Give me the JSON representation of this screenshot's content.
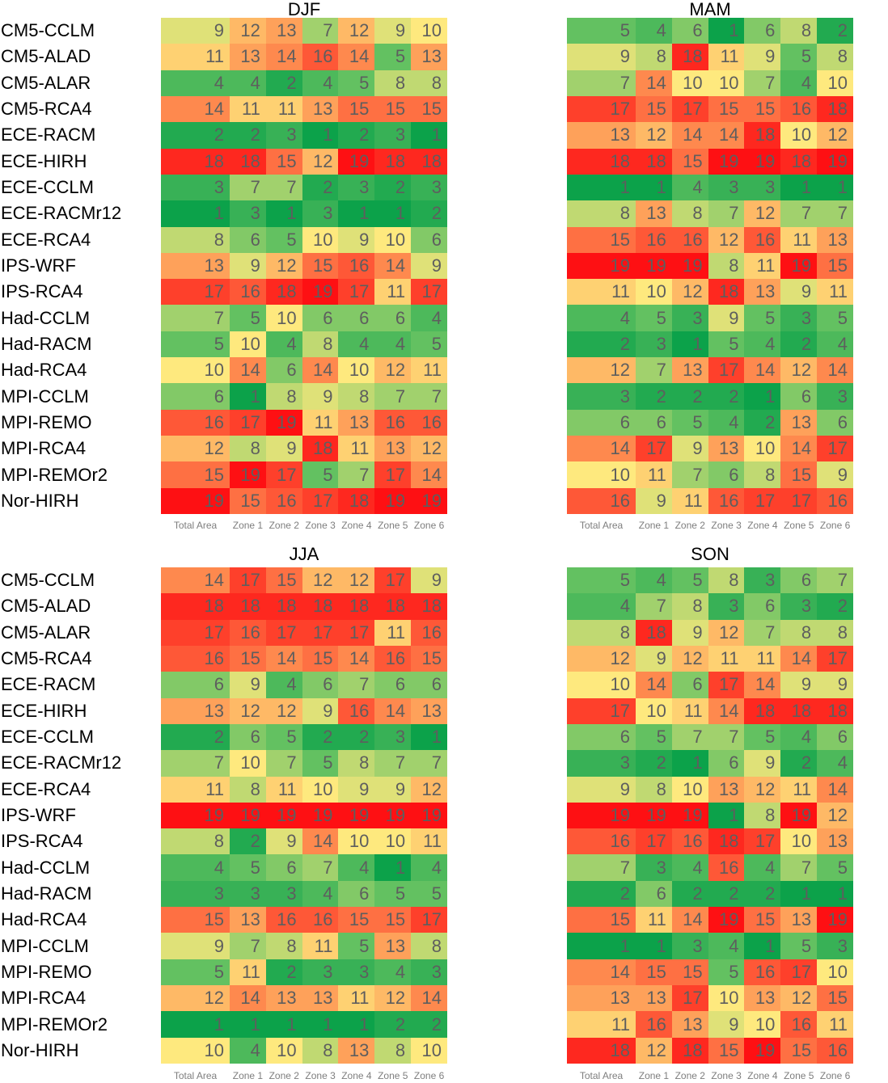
{
  "chart_data": {
    "type": "heatmap",
    "layout": {
      "panels_grid": "2x2",
      "grid_lines": false,
      "cell_value_alignment": "right",
      "value_range": [
        1,
        19
      ]
    },
    "row_labels": [
      "CM5-CCLM",
      "CM5-ALAD",
      "CM5-ALAR",
      "CM5-RCA4",
      "ECE-RACM",
      "ECE-HIRH",
      "ECE-CCLM",
      "ECE-RACMr12",
      "ECE-RCA4",
      "IPS-WRF",
      "IPS-RCA4",
      "Had-CCLM",
      "Had-RACM",
      "Had-RCA4",
      "MPI-CCLM",
      "MPI-REMO",
      "MPI-RCA4",
      "MPI-REMOr2",
      "Nor-HIRH"
    ],
    "col_labels": [
      "Total Area",
      "Zone 1",
      "Zone 2",
      "Zone 3",
      "Zone 4",
      "Zone 5",
      "Zone 6"
    ],
    "panels": [
      {
        "title": "DJF",
        "values": [
          [
            9,
            12,
            13,
            7,
            12,
            9,
            10
          ],
          [
            11,
            13,
            14,
            16,
            14,
            5,
            13
          ],
          [
            4,
            4,
            2,
            4,
            5,
            8,
            8
          ],
          [
            14,
            11,
            11,
            13,
            15,
            15,
            15
          ],
          [
            2,
            2,
            3,
            1,
            2,
            3,
            1
          ],
          [
            18,
            18,
            15,
            12,
            19,
            18,
            18
          ],
          [
            3,
            7,
            7,
            2,
            3,
            2,
            3
          ],
          [
            1,
            3,
            1,
            3,
            1,
            1,
            2
          ],
          [
            8,
            6,
            5,
            10,
            9,
            10,
            6
          ],
          [
            13,
            9,
            12,
            15,
            16,
            14,
            9
          ],
          [
            17,
            16,
            18,
            19,
            17,
            11,
            17
          ],
          [
            7,
            5,
            10,
            6,
            6,
            6,
            4
          ],
          [
            5,
            10,
            4,
            8,
            4,
            4,
            5
          ],
          [
            10,
            14,
            6,
            14,
            10,
            12,
            11
          ],
          [
            6,
            1,
            8,
            9,
            8,
            7,
            7
          ],
          [
            16,
            17,
            19,
            11,
            13,
            16,
            16
          ],
          [
            12,
            8,
            9,
            18,
            11,
            13,
            12
          ],
          [
            15,
            19,
            17,
            5,
            7,
            17,
            14
          ],
          [
            19,
            15,
            16,
            17,
            18,
            19,
            19
          ]
        ]
      },
      {
        "title": "MAM",
        "values": [
          [
            5,
            4,
            6,
            1,
            6,
            8,
            2
          ],
          [
            9,
            8,
            18,
            11,
            9,
            5,
            8
          ],
          [
            7,
            14,
            10,
            10,
            7,
            4,
            10
          ],
          [
            17,
            15,
            17,
            15,
            15,
            16,
            18
          ],
          [
            13,
            12,
            14,
            14,
            18,
            10,
            12
          ],
          [
            18,
            18,
            15,
            19,
            19,
            18,
            19
          ],
          [
            1,
            1,
            4,
            3,
            3,
            1,
            1
          ],
          [
            8,
            13,
            8,
            7,
            12,
            7,
            7
          ],
          [
            15,
            16,
            16,
            12,
            16,
            11,
            13
          ],
          [
            19,
            19,
            19,
            8,
            11,
            19,
            15
          ],
          [
            11,
            10,
            12,
            18,
            13,
            9,
            11
          ],
          [
            4,
            5,
            3,
            9,
            5,
            3,
            5
          ],
          [
            2,
            3,
            1,
            5,
            4,
            2,
            4
          ],
          [
            12,
            7,
            13,
            17,
            14,
            12,
            14
          ],
          [
            3,
            2,
            2,
            2,
            1,
            6,
            3
          ],
          [
            6,
            6,
            5,
            4,
            2,
            13,
            6
          ],
          [
            14,
            17,
            9,
            13,
            10,
            14,
            17
          ],
          [
            10,
            11,
            7,
            6,
            8,
            15,
            9
          ],
          [
            16,
            9,
            11,
            16,
            17,
            17,
            16
          ]
        ]
      },
      {
        "title": "JJA",
        "values": [
          [
            14,
            17,
            15,
            12,
            12,
            17,
            9
          ],
          [
            18,
            18,
            18,
            18,
            18,
            18,
            18
          ],
          [
            17,
            16,
            17,
            17,
            17,
            11,
            16
          ],
          [
            16,
            15,
            14,
            15,
            14,
            16,
            15
          ],
          [
            6,
            9,
            4,
            6,
            7,
            6,
            6
          ],
          [
            13,
            12,
            12,
            9,
            16,
            14,
            13
          ],
          [
            2,
            6,
            5,
            2,
            2,
            3,
            1
          ],
          [
            7,
            10,
            7,
            5,
            8,
            7,
            7
          ],
          [
            11,
            8,
            11,
            10,
            9,
            9,
            12
          ],
          [
            19,
            19,
            19,
            19,
            19,
            19,
            19
          ],
          [
            8,
            2,
            9,
            14,
            10,
            10,
            11
          ],
          [
            4,
            5,
            6,
            7,
            4,
            1,
            4
          ],
          [
            3,
            3,
            3,
            4,
            6,
            5,
            5
          ],
          [
            15,
            13,
            16,
            16,
            15,
            15,
            17
          ],
          [
            9,
            7,
            8,
            11,
            5,
            13,
            8
          ],
          [
            5,
            11,
            2,
            3,
            3,
            4,
            3
          ],
          [
            12,
            14,
            13,
            13,
            11,
            12,
            14
          ],
          [
            1,
            1,
            1,
            1,
            1,
            2,
            2
          ],
          [
            10,
            4,
            10,
            8,
            13,
            8,
            10
          ]
        ]
      },
      {
        "title": "SON",
        "values": [
          [
            5,
            4,
            5,
            8,
            3,
            6,
            7
          ],
          [
            4,
            7,
            8,
            3,
            6,
            3,
            2
          ],
          [
            8,
            18,
            9,
            12,
            7,
            8,
            8
          ],
          [
            12,
            9,
            12,
            11,
            11,
            14,
            17
          ],
          [
            10,
            14,
            6,
            17,
            14,
            9,
            9
          ],
          [
            17,
            10,
            11,
            14,
            18,
            18,
            18
          ],
          [
            6,
            5,
            7,
            7,
            5,
            4,
            6
          ],
          [
            3,
            2,
            1,
            6,
            9,
            2,
            4
          ],
          [
            9,
            8,
            10,
            13,
            12,
            11,
            14
          ],
          [
            19,
            19,
            19,
            1,
            8,
            19,
            12
          ],
          [
            16,
            17,
            16,
            18,
            17,
            10,
            13
          ],
          [
            7,
            3,
            4,
            16,
            4,
            7,
            5
          ],
          [
            2,
            6,
            2,
            2,
            2,
            1,
            1
          ],
          [
            15,
            11,
            14,
            19,
            15,
            13,
            19
          ],
          [
            1,
            1,
            3,
            4,
            1,
            5,
            3
          ],
          [
            14,
            15,
            15,
            5,
            16,
            17,
            10
          ],
          [
            13,
            13,
            17,
            10,
            13,
            12,
            15
          ],
          [
            11,
            16,
            13,
            9,
            10,
            16,
            11
          ],
          [
            18,
            12,
            18,
            15,
            19,
            15,
            16
          ]
        ]
      }
    ],
    "color_scale": {
      "1": "#0CA24A",
      "2": "#22AA50",
      "3": "#38B156",
      "4": "#4DB95B",
      "5": "#63C161",
      "6": "#82C967",
      "7": "#A1D16D",
      "8": "#C0D972",
      "9": "#DFE178",
      "10": "#FEE97E",
      "11": "#FED172",
      "12": "#FEB966",
      "13": "#FEA15A",
      "14": "#FE894E",
      "15": "#FE7043",
      "16": "#FE5837",
      "17": "#FE402B",
      "18": "#FE281F",
      "19": "#FE1013"
    },
    "colors": {
      "cell_text": "#5E5E5E",
      "row_label_text": "#000000",
      "title_text": "#000000",
      "axis_label_text": "#7E7E7E",
      "background": "#FFFFFF"
    }
  }
}
